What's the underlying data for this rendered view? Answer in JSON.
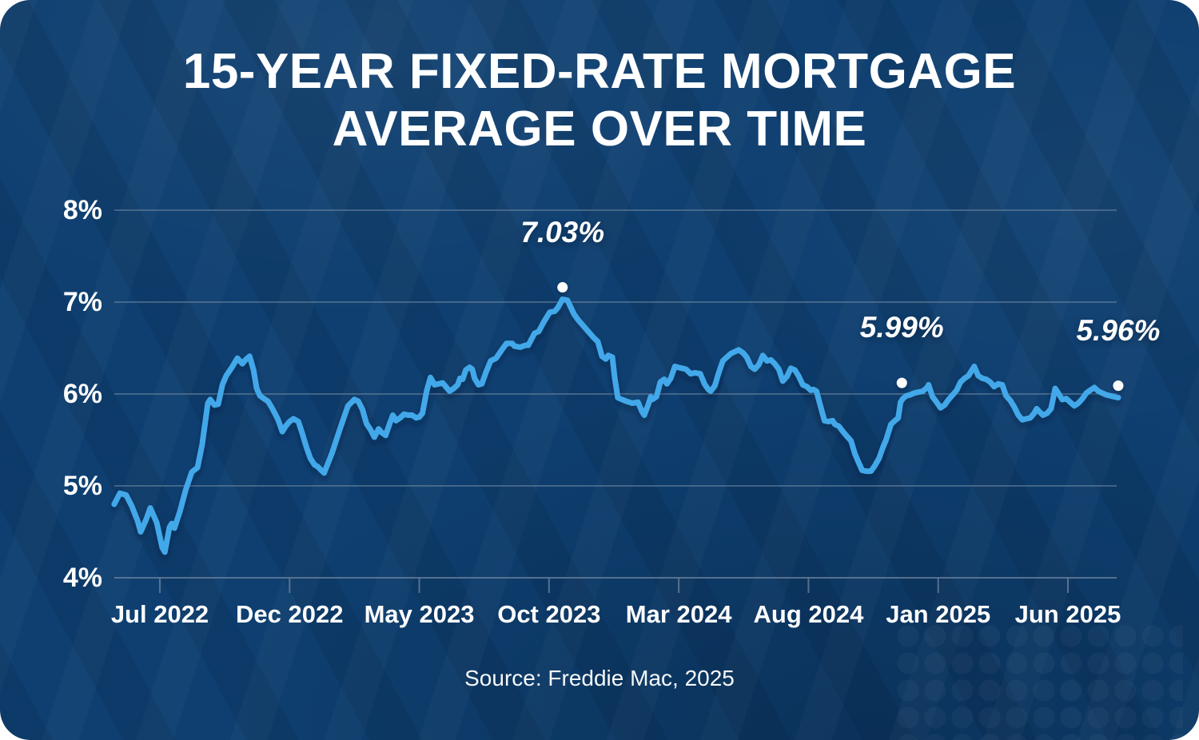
{
  "title": {
    "line1": "15-YEAR FIXED-RATE MORTGAGE",
    "line2": "AVERAGE OVER TIME"
  },
  "source": {
    "text": "Source: Freddie Mac, 2025"
  },
  "colors": {
    "background": "#0e3f70",
    "line": "#42a8e9",
    "grid": "#68809b",
    "text": "#ffffff",
    "annotation": "#ffffff",
    "line_shadow": "#041d38"
  },
  "chart_data": {
    "type": "line",
    "title": "15-Year Fixed-Rate Mortgage Average Over Time",
    "xlabel": "",
    "ylabel": "",
    "grid": true,
    "legend_position": "none",
    "y_axis": {
      "unit": "%",
      "min": 4,
      "max": 8,
      "tick_labels": [
        "8%",
        "7%",
        "6%",
        "5%",
        "4%"
      ],
      "tick_values": [
        8,
        7,
        6,
        5,
        4
      ]
    },
    "x_axis": {
      "tick_labels": [
        "Jul 2022",
        "Dec 2022",
        "May 2023",
        "Oct 2023",
        "Mar 2024",
        "Aug 2024",
        "Jan 2025",
        "Jun 2025"
      ],
      "tick_interval_months": 5,
      "t_unit": "months after Jul 2022 tick"
    },
    "series": [
      {
        "name": "15-year fixed-rate mortgage average (%)",
        "points": [
          [
            -1.76,
            4.8
          ],
          [
            -1.54,
            4.92
          ],
          [
            -1.3,
            4.9
          ],
          [
            -1.08,
            4.78
          ],
          [
            -0.86,
            4.62
          ],
          [
            -0.74,
            4.5
          ],
          [
            -0.52,
            4.64
          ],
          [
            -0.37,
            4.76
          ],
          [
            -0.12,
            4.6
          ],
          [
            0.09,
            4.33
          ],
          [
            0.19,
            4.28
          ],
          [
            0.37,
            4.55
          ],
          [
            0.46,
            4.59
          ],
          [
            0.56,
            4.54
          ],
          [
            0.77,
            4.72
          ],
          [
            0.99,
            4.95
          ],
          [
            1.23,
            5.15
          ],
          [
            1.45,
            5.2
          ],
          [
            1.63,
            5.45
          ],
          [
            1.85,
            5.9
          ],
          [
            1.94,
            5.94
          ],
          [
            2.1,
            5.88
          ],
          [
            2.25,
            5.89
          ],
          [
            2.41,
            6.1
          ],
          [
            2.56,
            6.2
          ],
          [
            2.78,
            6.29
          ],
          [
            2.99,
            6.39
          ],
          [
            3.18,
            6.33
          ],
          [
            3.3,
            6.37
          ],
          [
            3.46,
            6.41
          ],
          [
            3.61,
            6.26
          ],
          [
            3.73,
            6.06
          ],
          [
            3.86,
            5.98
          ],
          [
            4.01,
            5.95
          ],
          [
            4.17,
            5.92
          ],
          [
            4.32,
            5.85
          ],
          [
            4.54,
            5.73
          ],
          [
            4.72,
            5.59
          ],
          [
            4.85,
            5.65
          ],
          [
            5.0,
            5.7
          ],
          [
            5.15,
            5.73
          ],
          [
            5.34,
            5.7
          ],
          [
            5.49,
            5.57
          ],
          [
            5.65,
            5.42
          ],
          [
            5.8,
            5.3
          ],
          [
            5.96,
            5.23
          ],
          [
            6.08,
            5.21
          ],
          [
            6.33,
            5.14
          ],
          [
            6.64,
            5.36
          ],
          [
            6.94,
            5.62
          ],
          [
            7.25,
            5.87
          ],
          [
            7.5,
            5.94
          ],
          [
            7.65,
            5.92
          ],
          [
            7.81,
            5.83
          ],
          [
            7.96,
            5.68
          ],
          [
            8.12,
            5.61
          ],
          [
            8.27,
            5.53
          ],
          [
            8.43,
            5.62
          ],
          [
            8.55,
            5.58
          ],
          [
            8.7,
            5.55
          ],
          [
            8.86,
            5.68
          ],
          [
            8.98,
            5.77
          ],
          [
            9.1,
            5.71
          ],
          [
            9.26,
            5.74
          ],
          [
            9.41,
            5.78
          ],
          [
            9.57,
            5.77
          ],
          [
            9.72,
            5.77
          ],
          [
            9.88,
            5.74
          ],
          [
            10.0,
            5.75
          ],
          [
            10.12,
            5.79
          ],
          [
            10.28,
            6.03
          ],
          [
            10.43,
            6.18
          ],
          [
            10.59,
            6.1
          ],
          [
            10.74,
            6.11
          ],
          [
            10.9,
            6.12
          ],
          [
            11.02,
            6.08
          ],
          [
            11.17,
            6.03
          ],
          [
            11.33,
            6.06
          ],
          [
            11.48,
            6.1
          ],
          [
            11.57,
            6.17
          ],
          [
            11.67,
            6.16
          ],
          [
            11.79,
            6.26
          ],
          [
            11.94,
            6.29
          ],
          [
            12.04,
            6.27
          ],
          [
            12.13,
            6.17
          ],
          [
            12.28,
            6.1
          ],
          [
            12.41,
            6.11
          ],
          [
            12.56,
            6.23
          ],
          [
            12.75,
            6.36
          ],
          [
            12.96,
            6.39
          ],
          [
            13.18,
            6.48
          ],
          [
            13.36,
            6.55
          ],
          [
            13.58,
            6.55
          ],
          [
            13.67,
            6.52
          ],
          [
            13.89,
            6.51
          ],
          [
            14.1,
            6.53
          ],
          [
            14.2,
            6.53
          ],
          [
            14.44,
            6.66
          ],
          [
            14.6,
            6.68
          ],
          [
            14.81,
            6.79
          ],
          [
            15.03,
            6.89
          ],
          [
            15.22,
            6.9
          ],
          [
            15.34,
            6.94
          ],
          [
            15.52,
            7.03
          ],
          [
            15.71,
            7.02
          ],
          [
            15.96,
            6.87
          ],
          [
            16.11,
            6.81
          ],
          [
            16.3,
            6.75
          ],
          [
            16.51,
            6.68
          ],
          [
            16.73,
            6.61
          ],
          [
            16.88,
            6.57
          ],
          [
            17.04,
            6.41
          ],
          [
            17.19,
            6.38
          ],
          [
            17.28,
            6.42
          ],
          [
            17.44,
            6.4
          ],
          [
            17.53,
            6.18
          ],
          [
            17.65,
            5.96
          ],
          [
            17.81,
            5.94
          ],
          [
            17.99,
            5.92
          ],
          [
            18.21,
            5.9
          ],
          [
            18.43,
            5.91
          ],
          [
            18.58,
            5.81
          ],
          [
            18.67,
            5.77
          ],
          [
            18.83,
            5.89
          ],
          [
            18.92,
            5.97
          ],
          [
            18.98,
            5.94
          ],
          [
            19.14,
            5.97
          ],
          [
            19.29,
            6.13
          ],
          [
            19.44,
            6.16
          ],
          [
            19.54,
            6.11
          ],
          [
            19.69,
            6.17
          ],
          [
            19.85,
            6.3
          ],
          [
            19.97,
            6.29
          ],
          [
            20.12,
            6.28
          ],
          [
            20.28,
            6.27
          ],
          [
            20.46,
            6.22
          ],
          [
            20.62,
            6.23
          ],
          [
            20.83,
            6.22
          ],
          [
            20.99,
            6.11
          ],
          [
            21.14,
            6.05
          ],
          [
            21.23,
            6.03
          ],
          [
            21.39,
            6.09
          ],
          [
            21.54,
            6.23
          ],
          [
            21.7,
            6.36
          ],
          [
            21.85,
            6.4
          ],
          [
            22.01,
            6.44
          ],
          [
            22.16,
            6.46
          ],
          [
            22.31,
            6.48
          ],
          [
            22.47,
            6.45
          ],
          [
            22.62,
            6.4
          ],
          [
            22.78,
            6.3
          ],
          [
            22.93,
            6.27
          ],
          [
            23.09,
            6.32
          ],
          [
            23.24,
            6.42
          ],
          [
            23.4,
            6.36
          ],
          [
            23.55,
            6.37
          ],
          [
            23.7,
            6.33
          ],
          [
            23.86,
            6.27
          ],
          [
            24.01,
            6.14
          ],
          [
            24.17,
            6.19
          ],
          [
            24.32,
            6.28
          ],
          [
            24.48,
            6.26
          ],
          [
            24.63,
            6.19
          ],
          [
            24.78,
            6.1
          ],
          [
            24.94,
            6.08
          ],
          [
            25.09,
            6.04
          ],
          [
            25.19,
            6.05
          ],
          [
            25.31,
            6.03
          ],
          [
            25.46,
            5.87
          ],
          [
            25.62,
            5.71
          ],
          [
            25.77,
            5.7
          ],
          [
            25.93,
            5.71
          ],
          [
            26.02,
            5.67
          ],
          [
            26.17,
            5.65
          ],
          [
            26.33,
            5.59
          ],
          [
            26.48,
            5.54
          ],
          [
            26.64,
            5.49
          ],
          [
            26.79,
            5.35
          ],
          [
            26.91,
            5.27
          ],
          [
            27.07,
            5.17
          ],
          [
            27.22,
            5.16
          ],
          [
            27.41,
            5.16
          ],
          [
            27.56,
            5.22
          ],
          [
            27.72,
            5.3
          ],
          [
            27.87,
            5.42
          ],
          [
            27.99,
            5.5
          ],
          [
            28.09,
            5.59
          ],
          [
            28.18,
            5.67
          ],
          [
            28.33,
            5.71
          ],
          [
            28.46,
            5.74
          ],
          [
            28.55,
            5.91
          ],
          [
            28.64,
            5.95
          ],
          [
            28.77,
            5.98
          ],
          [
            28.92,
            5.99
          ],
          [
            29.07,
            6.01
          ],
          [
            29.23,
            6.02
          ],
          [
            29.41,
            6.03
          ],
          [
            29.57,
            6.07
          ],
          [
            29.63,
            6.1
          ],
          [
            29.78,
            5.97
          ],
          [
            29.94,
            5.91
          ],
          [
            30.09,
            5.85
          ],
          [
            30.25,
            5.88
          ],
          [
            30.4,
            5.94
          ],
          [
            30.56,
            5.99
          ],
          [
            30.71,
            6.04
          ],
          [
            30.86,
            6.13
          ],
          [
            31.02,
            6.17
          ],
          [
            31.17,
            6.2
          ],
          [
            31.39,
            6.3
          ],
          [
            31.54,
            6.2
          ],
          [
            31.7,
            6.17
          ],
          [
            31.85,
            6.16
          ],
          [
            32.01,
            6.13
          ],
          [
            32.16,
            6.08
          ],
          [
            32.31,
            6.11
          ],
          [
            32.47,
            6.1
          ],
          [
            32.62,
            5.98
          ],
          [
            32.78,
            5.93
          ],
          [
            32.93,
            5.86
          ],
          [
            33.09,
            5.77
          ],
          [
            33.24,
            5.72
          ],
          [
            33.4,
            5.73
          ],
          [
            33.55,
            5.74
          ],
          [
            33.7,
            5.79
          ],
          [
            33.8,
            5.84
          ],
          [
            33.89,
            5.81
          ],
          [
            34.04,
            5.77
          ],
          [
            34.2,
            5.79
          ],
          [
            34.35,
            5.84
          ],
          [
            34.51,
            6.06
          ],
          [
            34.63,
            6.01
          ],
          [
            34.78,
            5.94
          ],
          [
            34.94,
            5.95
          ],
          [
            35.09,
            5.91
          ],
          [
            35.25,
            5.87
          ],
          [
            35.4,
            5.9
          ],
          [
            35.56,
            5.95
          ],
          [
            35.71,
            6.01
          ],
          [
            35.86,
            6.04
          ],
          [
            36.02,
            6.07
          ],
          [
            36.17,
            6.03
          ],
          [
            36.33,
            6.01
          ],
          [
            36.48,
            5.99
          ],
          [
            36.64,
            5.98
          ],
          [
            36.79,
            5.97
          ],
          [
            36.94,
            5.96
          ]
        ]
      }
    ],
    "annotations": [
      {
        "label": "7.03%",
        "t": 15.52,
        "value": 7.03
      },
      {
        "label": "5.99%",
        "t": 28.6,
        "value": 5.99
      },
      {
        "label": "5.96%",
        "t": 36.94,
        "value": 5.96
      }
    ]
  }
}
